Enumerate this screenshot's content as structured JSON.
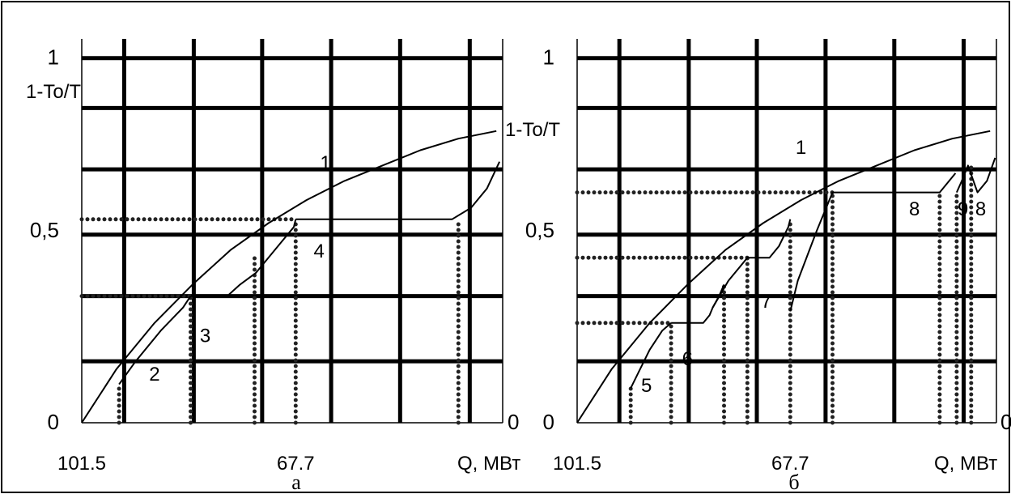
{
  "chart_data": [
    {
      "type": "line",
      "panel_label": "а",
      "ylabel": "1-To/T",
      "xlabel": "Q, МВт",
      "x_reversed": true,
      "xlim": [
        101.5,
        35.0
      ],
      "ylim": [
        0,
        1.0
      ],
      "x_tick_labels": [
        {
          "x": 101.5,
          "label": "101.5"
        },
        {
          "x": 67.7,
          "label": "67.7"
        }
      ],
      "y_tick_labels": [
        {
          "y": 0,
          "label": "0"
        },
        {
          "y": 0.5,
          "label": "0,5"
        },
        {
          "y": 0.95,
          "label": "1"
        }
      ],
      "right_axis_label": "0",
      "grid": {
        "heavy": true,
        "x_lines": [
          94.8,
          83.8,
          73.0,
          62.1,
          51.2,
          40.2
        ],
        "y_lines": [
          0.16,
          0.33,
          0.49,
          0.66,
          0.82,
          0.95
        ]
      },
      "series": [
        {
          "name": "1",
          "style": "solid",
          "x": [
            101.5,
            96.0,
            90.0,
            84.0,
            78.0,
            72.0,
            66.0,
            60.0,
            54.0,
            48.0,
            42.0,
            36.0
          ],
          "y": [
            0.0,
            0.14,
            0.26,
            0.36,
            0.45,
            0.52,
            0.58,
            0.63,
            0.67,
            0.71,
            0.74,
            0.76
          ]
        },
        {
          "name": "2",
          "style": "solid",
          "x": [
            95.6,
            93.0,
            89.0,
            85.5,
            84.3
          ],
          "y": [
            0.1,
            0.16,
            0.24,
            0.3,
            0.33
          ]
        },
        {
          "name": "3",
          "style": "solid",
          "x": [
            84.3,
            78.5,
            76.5,
            74.0,
            70.0,
            68.0,
            67.7
          ],
          "y": [
            0.33,
            0.33,
            0.36,
            0.39,
            0.47,
            0.51,
            0.53
          ]
        },
        {
          "name": "4",
          "style": "solid",
          "x": [
            67.7,
            43.0,
            40.0,
            37.5,
            35.5
          ],
          "y": [
            0.53,
            0.53,
            0.56,
            0.61,
            0.68
          ]
        }
      ],
      "dotted_lines": [
        {
          "x": [
            101.5,
            84.3
          ],
          "y": [
            0.33,
            0.33
          ]
        },
        {
          "x": [
            101.5,
            67.7
          ],
          "y": [
            0.53,
            0.53
          ]
        },
        {
          "x": [
            95.6,
            95.6
          ],
          "y": [
            0.0,
            0.1
          ]
        },
        {
          "x": [
            84.3,
            84.3
          ],
          "y": [
            0.0,
            0.33
          ]
        },
        {
          "x": [
            74.2,
            74.2
          ],
          "y": [
            0.0,
            0.43
          ]
        },
        {
          "x": [
            67.7,
            67.7
          ],
          "y": [
            0.0,
            0.53
          ]
        },
        {
          "x": [
            42.0,
            42.0
          ],
          "y": [
            0.0,
            0.53
          ]
        }
      ],
      "series_labels": [
        {
          "text": "1",
          "x": 63.0,
          "y": 0.66
        },
        {
          "text": "2",
          "x": 90.0,
          "y": 0.11
        },
        {
          "text": "3",
          "x": 82.0,
          "y": 0.21
        },
        {
          "text": "4",
          "x": 64.0,
          "y": 0.43
        }
      ]
    },
    {
      "type": "line",
      "panel_label": "б",
      "ylabel": "1-To/T",
      "xlabel": "Q, МВт",
      "x_reversed": true,
      "xlim": [
        101.5,
        35.0
      ],
      "ylim": [
        0,
        1.0
      ],
      "x_tick_labels": [
        {
          "x": 101.5,
          "label": "101.5"
        },
        {
          "x": 67.7,
          "label": "67.7"
        }
      ],
      "y_tick_labels": [
        {
          "y": 0,
          "label": "0"
        },
        {
          "y": 0.5,
          "label": "0,5"
        },
        {
          "y": 0.95,
          "label": "1"
        }
      ],
      "right_axis_label": "0",
      "grid": {
        "heavy": true,
        "x_lines": [
          94.8,
          83.8,
          73.0,
          62.1,
          51.2,
          40.2
        ],
        "y_lines": [
          0.16,
          0.33,
          0.49,
          0.66,
          0.82,
          0.95
        ]
      },
      "series": [
        {
          "name": "1",
          "style": "solid",
          "x": [
            101.5,
            96.0,
            90.0,
            84.0,
            78.0,
            72.0,
            66.0,
            60.0,
            54.0,
            48.0,
            42.0,
            36.0
          ],
          "y": [
            0.0,
            0.14,
            0.26,
            0.36,
            0.45,
            0.52,
            0.58,
            0.63,
            0.67,
            0.71,
            0.74,
            0.76
          ]
        },
        {
          "name": "5",
          "style": "solid",
          "x": [
            93.0,
            91.5,
            90.0,
            88.0,
            86.6
          ],
          "y": [
            0.09,
            0.14,
            0.19,
            0.24,
            0.26
          ]
        },
        {
          "name": "6",
          "style": "solid",
          "x": [
            86.6,
            81.5,
            80.5,
            80.0,
            79.0,
            78.2
          ],
          "y": [
            0.26,
            0.26,
            0.28,
            0.3,
            0.33,
            0.36
          ]
        },
        {
          "name": "7",
          "style": "solid",
          "x": [
            80.0,
            77.5,
            75.5,
            74.5,
            71.0,
            69.5,
            68.0,
            67.7
          ],
          "y": [
            0.3,
            0.37,
            0.41,
            0.43,
            0.43,
            0.46,
            0.51,
            0.53
          ]
        },
        {
          "name": "8",
          "style": "solid",
          "x": [
            67.7,
            66.5,
            63.5,
            61.0,
            44.0,
            41.5
          ],
          "y": [
            0.29,
            0.37,
            0.5,
            0.6,
            0.6,
            0.65
          ]
        },
        {
          "name": "9",
          "style": "solid",
          "x": [
            41.3,
            40.5,
            39.5,
            38.0,
            36.5,
            35.2
          ],
          "y": [
            0.6,
            0.63,
            0.67,
            0.6,
            0.63,
            0.69
          ]
        }
      ],
      "dotted_lines": [
        {
          "x": [
            101.5,
            86.6
          ],
          "y": [
            0.26,
            0.26
          ]
        },
        {
          "x": [
            101.5,
            74.5
          ],
          "y": [
            0.43,
            0.43
          ]
        },
        {
          "x": [
            101.5,
            61.0
          ],
          "y": [
            0.6,
            0.6
          ]
        },
        {
          "x": [
            93.0,
            93.0
          ],
          "y": [
            0.0,
            0.09
          ]
        },
        {
          "x": [
            86.6,
            86.6
          ],
          "y": [
            0.0,
            0.26
          ]
        },
        {
          "x": [
            78.2,
            78.2
          ],
          "y": [
            0.0,
            0.36
          ]
        },
        {
          "x": [
            74.5,
            74.5
          ],
          "y": [
            0.0,
            0.43
          ]
        },
        {
          "x": [
            67.7,
            67.7
          ],
          "y": [
            0.0,
            0.53
          ]
        },
        {
          "x": [
            61.0,
            61.0
          ],
          "y": [
            0.0,
            0.6
          ]
        },
        {
          "x": [
            44.0,
            44.0
          ],
          "y": [
            0.0,
            0.6
          ]
        },
        {
          "x": [
            41.3,
            41.3
          ],
          "y": [
            0.0,
            0.6
          ]
        },
        {
          "x": [
            39.0,
            39.0
          ],
          "y": [
            0.0,
            0.67
          ]
        }
      ],
      "series_labels": [
        {
          "text": "1",
          "x": 66.0,
          "y": 0.7
        },
        {
          "text": "5",
          "x": 90.5,
          "y": 0.08
        },
        {
          "text": "6",
          "x": 84.0,
          "y": 0.15
        },
        {
          "text": "7",
          "x": 71.5,
          "y": 0.3
        },
        {
          "text": "8",
          "x": 48.0,
          "y": 0.54
        },
        {
          "text": "9",
          "x": 40.3,
          "y": 0.54
        },
        {
          "text": "8",
          "x": 37.5,
          "y": 0.54
        }
      ]
    }
  ]
}
